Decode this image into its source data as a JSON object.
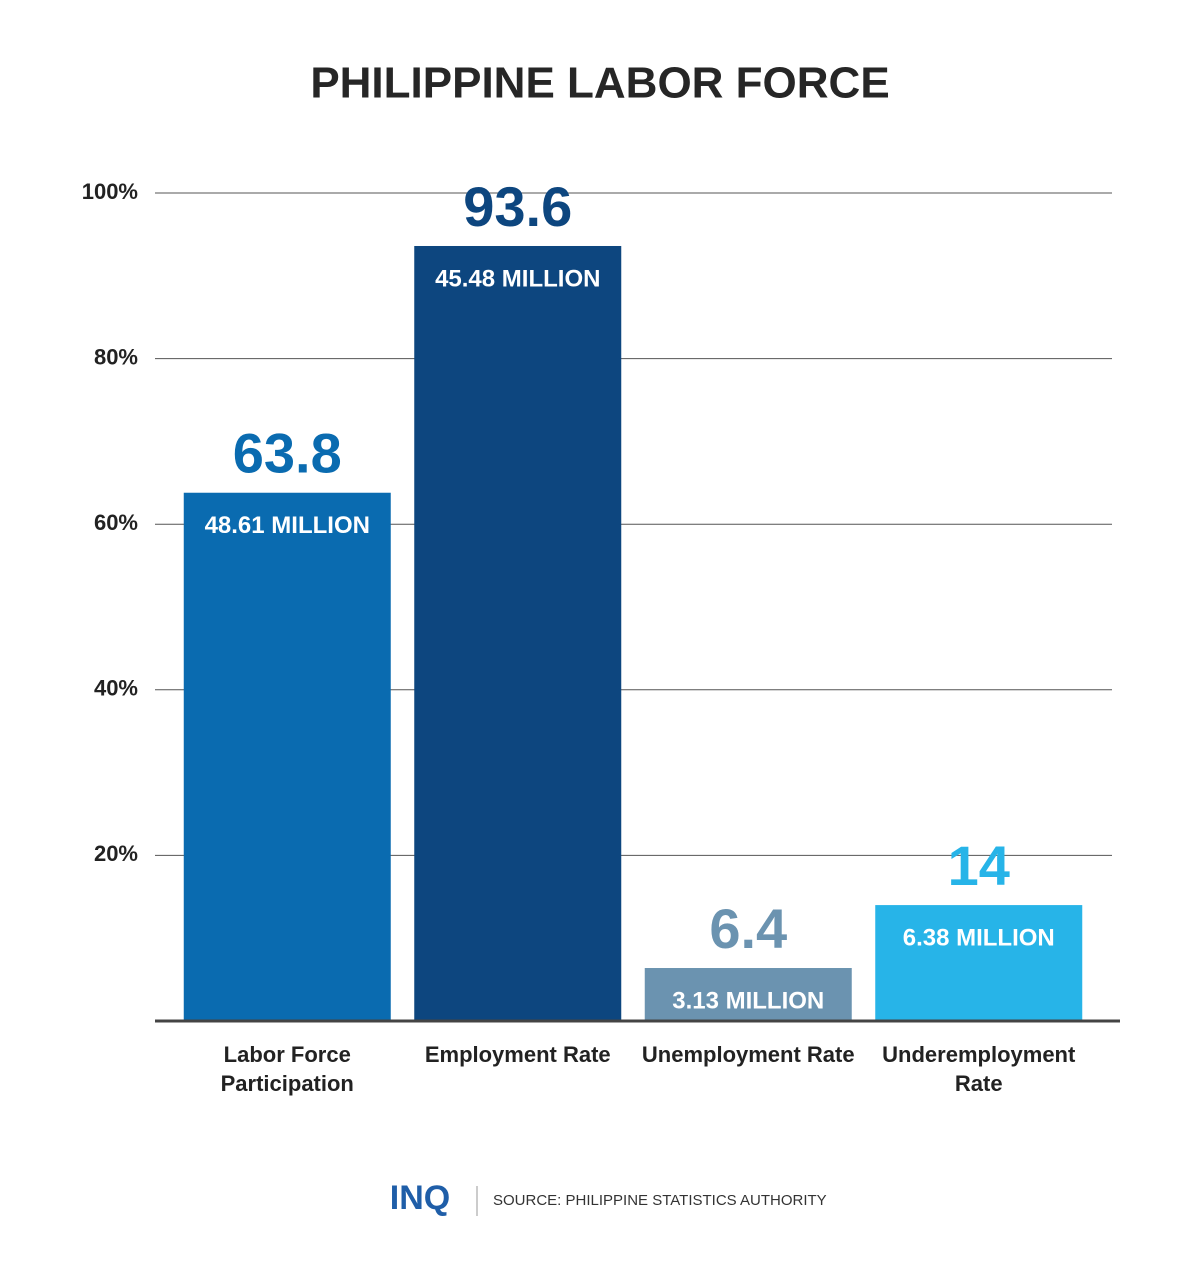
{
  "chart_data": {
    "type": "bar",
    "title": "PHILIPPINE LABOR FORCE",
    "categories": [
      "Labor Force Participation",
      "Employment Rate",
      "Unemployment Rate",
      "Underemployment Rate"
    ],
    "values": [
      63.8,
      93.6,
      6.4,
      14
    ],
    "annotations": [
      "48.61 MILLION",
      "45.48 MILLION",
      "3.13 MILLION",
      "6.38 MILLION"
    ],
    "colors": [
      "#0a6bb0",
      "#0d467f",
      "#6b93b0",
      "#27b4e8"
    ],
    "ylim": [
      0,
      100
    ],
    "yticks": [
      {
        "value": 20,
        "label": "20%"
      },
      {
        "value": 40,
        "label": "40%"
      },
      {
        "value": 60,
        "label": "60%"
      },
      {
        "value": 80,
        "label": "80%"
      },
      {
        "value": 100,
        "label": "100%"
      }
    ],
    "grid": true,
    "logo": "INQ",
    "source": "SOURCE: PHILIPPINE STATISTICS AUTHORITY"
  }
}
